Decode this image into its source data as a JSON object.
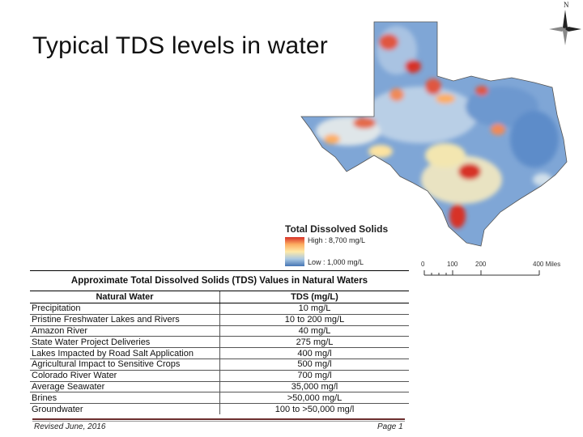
{
  "slide": {
    "title": "Typical TDS levels in water"
  },
  "map": {
    "legend": {
      "title": "Total Dissolved Solids",
      "high": "High : 8,700 mg/L",
      "low": "Low : 1,000 mg/L",
      "colors": [
        "#d73027",
        "#fdae61",
        "#fee9a8",
        "#abc9e3",
        "#4575b4"
      ]
    },
    "scale": {
      "ticks": [
        "0",
        "100",
        "200",
        "400 Miles"
      ]
    },
    "compass": {
      "north_label": "N"
    }
  },
  "table": {
    "caption": "Approximate Total Dissolved Solids (TDS) Values in Natural Waters",
    "headers": [
      "Natural Water",
      "TDS (mg/L)"
    ],
    "rows": [
      [
        "Precipitation",
        "10 mg/L"
      ],
      [
        "Pristine Freshwater Lakes and Rivers",
        "10 to 200 mg/L"
      ],
      [
        "Amazon River",
        "40 mg/L"
      ],
      [
        "State Water Project Deliveries",
        "275 mg/L"
      ],
      [
        "Lakes Impacted by Road Salt Application",
        "400 mg/l"
      ],
      [
        "Agricultural Impact to Sensitive Crops",
        "500 mg/l"
      ],
      [
        "Colorado River Water",
        "700 mg/l"
      ],
      [
        "Average Seawater",
        "35,000 mg/l"
      ],
      [
        "Brines",
        ">50,000 mg/L"
      ],
      [
        "Groundwater",
        "100 to >50,000 mg/l"
      ]
    ]
  },
  "footer": {
    "left": "Revised June, 2016",
    "right": "Page 1"
  }
}
